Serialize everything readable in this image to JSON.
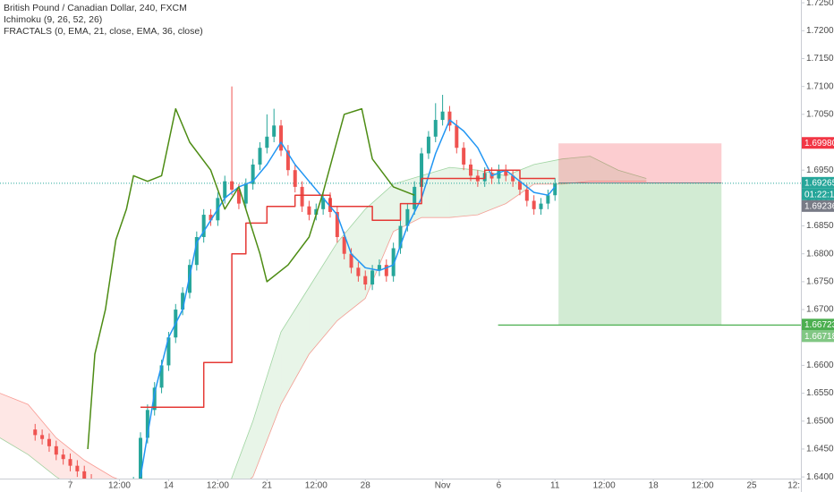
{
  "chart_data": {
    "type": "candlestick",
    "title": "British Pound / Canadian Dollar, 240, FXCM",
    "indicators": [
      "Ichimoku (9, 26, 52, 26)",
      "FRACTALS (0, EMA, 21, close, EMA, 36, close)"
    ],
    "ylim": [
      1.6397,
      1.7255
    ],
    "yticks": [
      {
        "value": 1.64,
        "label": "1.64000"
      },
      {
        "value": 1.645,
        "label": "1.64500"
      },
      {
        "value": 1.65,
        "label": "1.65000"
      },
      {
        "value": 1.655,
        "label": "1.65500"
      },
      {
        "value": 1.66,
        "label": "1.66000"
      },
      {
        "value": 1.665,
        "label": "1.66500"
      },
      {
        "value": 1.67,
        "label": "1.67000"
      },
      {
        "value": 1.675,
        "label": "1.67500"
      },
      {
        "value": 1.68,
        "label": "1.68000"
      },
      {
        "value": 1.685,
        "label": "1.68500"
      },
      {
        "value": 1.69,
        "label": "1.69000"
      },
      {
        "value": 1.695,
        "label": "1.69500"
      },
      {
        "value": 1.7,
        "label": "1.70000"
      },
      {
        "value": 1.705,
        "label": "1.70500"
      },
      {
        "value": 1.71,
        "label": "1.71000"
      },
      {
        "value": 1.715,
        "label": "1.71500"
      },
      {
        "value": 1.72,
        "label": "1.72000"
      },
      {
        "value": 1.725,
        "label": "1.72500"
      }
    ],
    "xlim": [
      0,
      114
    ],
    "xticks": [
      {
        "value": 10,
        "label": "7"
      },
      {
        "value": 17,
        "label": "12:00"
      },
      {
        "value": 24,
        "label": "14"
      },
      {
        "value": 31,
        "label": "12:00"
      },
      {
        "value": 38,
        "label": "21"
      },
      {
        "value": 45,
        "label": "12:00"
      },
      {
        "value": 52,
        "label": "28"
      },
      {
        "value": 63,
        "label": "Nov"
      },
      {
        "value": 71,
        "label": "6"
      },
      {
        "value": 79,
        "label": "11"
      },
      {
        "value": 86,
        "label": "12:00"
      },
      {
        "value": 93,
        "label": "18"
      },
      {
        "value": 100,
        "label": "12:00"
      },
      {
        "value": 107,
        "label": "25"
      },
      {
        "value": 113,
        "label": "12:"
      }
    ],
    "up_color": "#26a69a",
    "down_color": "#ef5350",
    "candles": {
      "x": [
        5,
        6,
        7,
        8,
        9,
        10,
        11,
        12,
        13,
        14,
        15,
        16,
        17,
        18,
        19,
        20,
        21,
        22,
        23,
        24,
        25,
        26,
        27,
        28,
        29,
        30,
        31,
        32,
        33,
        34,
        35,
        36,
        37,
        38,
        39,
        40,
        41,
        42,
        43,
        44,
        45,
        46,
        47,
        48,
        49,
        50,
        51,
        52,
        53,
        54,
        55,
        56,
        57,
        58,
        59,
        60,
        61,
        62,
        63,
        64,
        65,
        66,
        67,
        68,
        69,
        70,
        71,
        72,
        73,
        74,
        75,
        76,
        77,
        78,
        79
      ],
      "open": [
        1.6485,
        1.6475,
        1.6468,
        1.6455,
        1.644,
        1.6432,
        1.642,
        1.641,
        1.6395,
        1.638,
        1.6372,
        1.6365,
        1.637,
        1.638,
        1.6375,
        1.639,
        1.647,
        1.652,
        1.656,
        1.66,
        1.665,
        1.67,
        1.673,
        1.678,
        1.683,
        1.687,
        1.686,
        1.69,
        1.693,
        1.6915,
        1.689,
        1.6925,
        1.696,
        1.699,
        1.701,
        1.703,
        1.6985,
        1.695,
        1.692,
        1.6885,
        1.687,
        1.688,
        1.69,
        1.6875,
        1.683,
        1.68,
        1.6775,
        1.676,
        1.6745,
        1.677,
        1.678,
        1.676,
        1.681,
        1.685,
        1.688,
        1.692,
        1.698,
        1.701,
        1.704,
        1.7055,
        1.703,
        1.699,
        1.696,
        1.694,
        1.693,
        1.6945,
        1.6935,
        1.695,
        1.694,
        1.693,
        1.6915,
        1.6895,
        1.688,
        1.689,
        1.6905
      ],
      "high": [
        1.6495,
        1.6485,
        1.6478,
        1.6465,
        1.645,
        1.6442,
        1.643,
        1.642,
        1.6405,
        1.639,
        1.6382,
        1.638,
        1.639,
        1.639,
        1.64,
        1.648,
        1.653,
        1.657,
        1.661,
        1.666,
        1.671,
        1.674,
        1.679,
        1.684,
        1.688,
        1.688,
        1.691,
        1.694,
        1.71,
        1.6925,
        1.6935,
        1.697,
        1.7,
        1.705,
        1.706,
        1.704,
        1.6995,
        1.696,
        1.693,
        1.6895,
        1.689,
        1.691,
        1.691,
        1.6885,
        1.684,
        1.681,
        1.6785,
        1.677,
        1.678,
        1.679,
        1.679,
        1.682,
        1.686,
        1.689,
        1.693,
        1.699,
        1.702,
        1.707,
        1.7085,
        1.7065,
        1.704,
        1.7,
        1.697,
        1.695,
        1.6955,
        1.6955,
        1.696,
        1.696,
        1.695,
        1.694,
        1.6925,
        1.6905,
        1.69,
        1.6915,
        1.6936
      ],
      "low": [
        1.6465,
        1.6458,
        1.6445,
        1.643,
        1.6422,
        1.641,
        1.64,
        1.6385,
        1.637,
        1.6362,
        1.6355,
        1.6355,
        1.636,
        1.6365,
        1.6365,
        1.638,
        1.646,
        1.651,
        1.655,
        1.659,
        1.664,
        1.669,
        1.672,
        1.677,
        1.682,
        1.685,
        1.685,
        1.689,
        1.6905,
        1.688,
        1.688,
        1.6915,
        1.695,
        1.698,
        1.7,
        1.6975,
        1.694,
        1.691,
        1.6875,
        1.686,
        1.686,
        1.687,
        1.6865,
        1.682,
        1.679,
        1.6765,
        1.675,
        1.6735,
        1.6735,
        1.676,
        1.675,
        1.675,
        1.68,
        1.684,
        1.687,
        1.691,
        1.697,
        1.7,
        1.703,
        1.702,
        1.698,
        1.695,
        1.693,
        1.692,
        1.692,
        1.6925,
        1.6925,
        1.693,
        1.692,
        1.6905,
        1.6885,
        1.687,
        1.687,
        1.688,
        1.6895
      ],
      "close": [
        1.6475,
        1.6468,
        1.6455,
        1.644,
        1.6432,
        1.642,
        1.641,
        1.6395,
        1.638,
        1.6372,
        1.6365,
        1.637,
        1.638,
        1.6375,
        1.639,
        1.647,
        1.652,
        1.656,
        1.66,
        1.665,
        1.67,
        1.673,
        1.678,
        1.683,
        1.687,
        1.686,
        1.69,
        1.693,
        1.6915,
        1.689,
        1.6925,
        1.696,
        1.699,
        1.701,
        1.703,
        1.6985,
        1.695,
        1.692,
        1.6885,
        1.687,
        1.688,
        1.69,
        1.6875,
        1.683,
        1.68,
        1.6775,
        1.676,
        1.6745,
        1.677,
        1.678,
        1.676,
        1.681,
        1.685,
        1.688,
        1.692,
        1.698,
        1.701,
        1.704,
        1.7055,
        1.703,
        1.699,
        1.696,
        1.694,
        1.693,
        1.6945,
        1.6935,
        1.695,
        1.694,
        1.693,
        1.6915,
        1.6895,
        1.688,
        1.689,
        1.6905,
        1.6926
      ]
    },
    "cloud": {
      "x": [
        0,
        4,
        8,
        12,
        16,
        20,
        24,
        28,
        32,
        36,
        40,
        44,
        48,
        52,
        56,
        60,
        64,
        68,
        72,
        76,
        80,
        84,
        88,
        92
      ],
      "span_a": [
        1.647,
        1.644,
        1.64,
        1.637,
        1.636,
        1.636,
        1.636,
        1.636,
        1.6365,
        1.65,
        1.666,
        1.674,
        1.682,
        1.688,
        1.6925,
        1.694,
        1.6955,
        1.695,
        1.694,
        1.696,
        1.697,
        1.6975,
        1.695,
        1.6935
      ],
      "span_b": [
        1.655,
        1.653,
        1.647,
        1.643,
        1.64,
        1.638,
        1.637,
        1.636,
        1.636,
        1.64,
        1.653,
        1.662,
        1.668,
        1.672,
        1.684,
        1.6865,
        1.6865,
        1.687,
        1.689,
        1.6925,
        1.6925,
        1.693,
        1.693,
        1.693
      ],
      "up_color": "#4caf50",
      "down_color": "#f44336"
    },
    "lines": [
      {
        "color": "#2196f3",
        "x": [
          20,
          22,
          24,
          26,
          28,
          30,
          32,
          34,
          36,
          38,
          40,
          42,
          44,
          46,
          48,
          50,
          52,
          54,
          56,
          58,
          60,
          62,
          64,
          66,
          68,
          70,
          72,
          74,
          76,
          78,
          79
        ],
        "values": [
          1.64,
          1.655,
          1.665,
          1.67,
          1.682,
          1.686,
          1.69,
          1.692,
          1.693,
          1.696,
          1.7,
          1.696,
          1.693,
          1.69,
          1.687,
          1.68,
          1.6775,
          1.677,
          1.678,
          1.685,
          1.69,
          1.698,
          1.704,
          1.702,
          1.699,
          1.694,
          1.695,
          1.693,
          1.691,
          1.6905,
          1.692
        ]
      },
      {
        "color": "#e53935",
        "x": [
          20,
          29,
          29,
          33,
          33,
          35,
          35,
          38,
          38,
          42,
          42,
          47,
          47,
          53,
          53,
          57,
          57,
          60,
          60,
          69,
          69,
          74,
          74,
          79
        ],
        "values": [
          1.6525,
          1.6525,
          1.6605,
          1.6605,
          1.68,
          1.68,
          1.6855,
          1.6855,
          1.6885,
          1.6885,
          1.6905,
          1.6905,
          1.6885,
          1.6885,
          1.686,
          1.686,
          1.689,
          1.689,
          1.6935,
          1.6935,
          1.695,
          1.695,
          1.6935,
          1.6935
        ]
      },
      {
        "color": "#4d8c14",
        "x": [
          12.5,
          13.5,
          15,
          16.5,
          18,
          19,
          21,
          23,
          25,
          27,
          30,
          32,
          34,
          37,
          38,
          41,
          44,
          46,
          49,
          51.5,
          53,
          56,
          59
        ],
        "values": [
          1.645,
          1.662,
          1.67,
          1.6825,
          1.688,
          1.694,
          1.693,
          1.694,
          1.706,
          1.7,
          1.695,
          1.688,
          1.692,
          1.68,
          1.675,
          1.678,
          1.683,
          1.691,
          1.705,
          1.706,
          1.697,
          1.692,
          1.6905
        ]
      }
    ],
    "position": {
      "x_start": 79.5,
      "x_end": 102.7,
      "entry": 1.6927,
      "stop": 1.6998,
      "target": 1.66723,
      "stop_color": "#f23645",
      "target_color": "#4caf50"
    },
    "hline": {
      "value": 1.66723,
      "x_start": 70.9,
      "color": "#4caf50"
    },
    "last_price": 1.69265,
    "price_labels": [
      {
        "value": 1.6998,
        "label": "1.69980",
        "color": "#f23645"
      },
      {
        "value": 1.69265,
        "label": "1.69265",
        "color": "#26a69a"
      },
      {
        "value": 1.69236,
        "label": "1.69236",
        "color": "#787b86"
      },
      {
        "value": 1.66723,
        "label": "1.66723",
        "color": "#4caf50"
      },
      {
        "value": 1.66718,
        "label": "1.66718",
        "color": "#81c784"
      }
    ],
    "countdown": "01:22:18"
  }
}
